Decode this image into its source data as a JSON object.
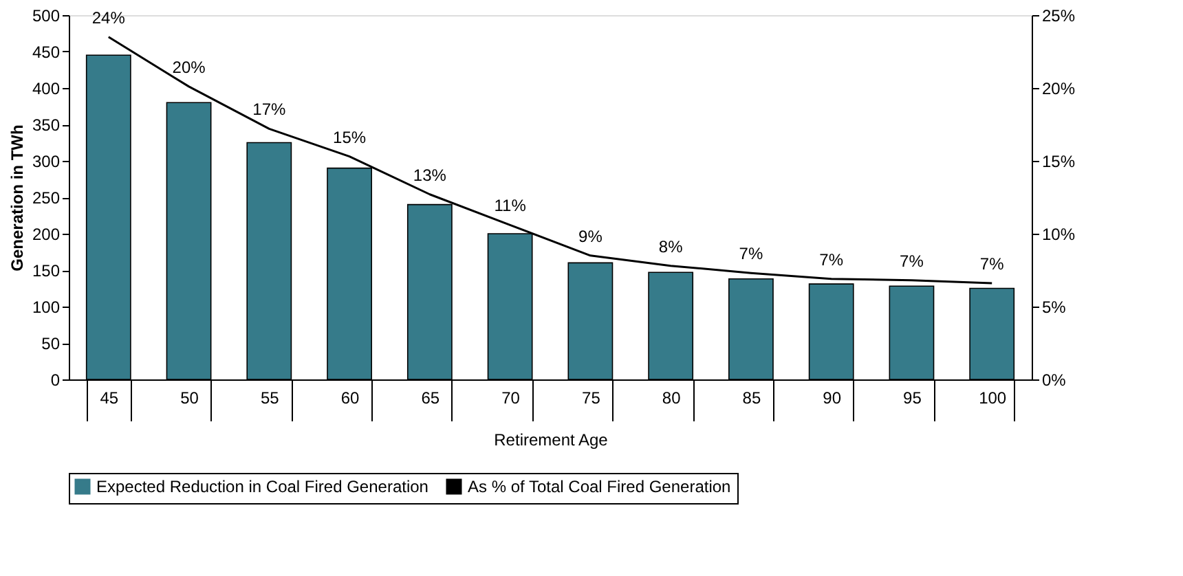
{
  "chart_data": {
    "type": "bar",
    "xlabel": "Retirement Age",
    "ylabel": "Generation in TWh",
    "categories": [
      "45",
      "50",
      "55",
      "60",
      "65",
      "70",
      "75",
      "80",
      "85",
      "90",
      "95",
      "100"
    ],
    "series": [
      {
        "name": "Expected Reduction in Coal Fired Generation",
        "color": "#367b8a",
        "values": [
          445,
          380,
          325,
          290,
          240,
          200,
          160,
          147,
          138,
          131,
          128,
          125
        ]
      },
      {
        "name": "As % of Total Coal Fired Generation",
        "type": "line",
        "axis": "y2",
        "color": "#000000",
        "marker": "none",
        "line_style": "solid",
        "values": [
          23.5,
          20.1,
          17.2,
          15.3,
          12.7,
          10.6,
          8.5,
          7.8,
          7.3,
          6.9,
          6.8,
          6.6
        ],
        "value_labels": [
          "24%",
          "20%",
          "17%",
          "15%",
          "13%",
          "11%",
          "9%",
          "8%",
          "7%",
          "7%",
          "7%",
          "7%"
        ]
      }
    ],
    "ylim": [
      0,
      500
    ],
    "yticks": [
      0,
      50,
      100,
      150,
      200,
      250,
      300,
      350,
      400,
      450,
      500
    ],
    "y2lim": [
      0,
      25
    ],
    "y2ticks": [
      {
        "value": 0,
        "label": "0%"
      },
      {
        "value": 5,
        "label": "5%"
      },
      {
        "value": 10,
        "label": "10%"
      },
      {
        "value": 15,
        "label": "15%"
      },
      {
        "value": 20,
        "label": "20%"
      },
      {
        "value": 25,
        "label": "25%"
      }
    ],
    "grid": false,
    "legend": "bottom"
  }
}
